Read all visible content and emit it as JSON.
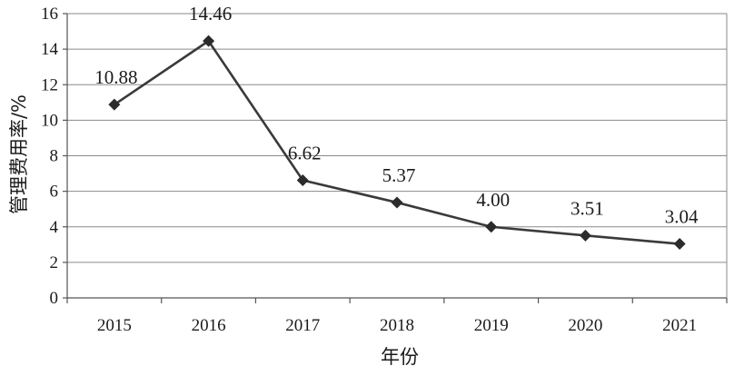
{
  "chart_data": {
    "type": "line",
    "title": "",
    "xlabel": "年份",
    "ylabel": "管理费用率/%",
    "categories": [
      "2015",
      "2016",
      "2017",
      "2018",
      "2019",
      "2020",
      "2021"
    ],
    "series": [
      {
        "values": [
          10.88,
          14.46,
          6.62,
          5.37,
          4.0,
          3.51,
          3.04
        ],
        "labels": [
          "10.88",
          "14.46",
          "6.62",
          "5.37",
          "4.00",
          "3.51",
          "3.04"
        ],
        "color": "#3a3a3a"
      }
    ],
    "ylim": [
      0,
      16
    ],
    "yticks": [
      0,
      2,
      4,
      6,
      8,
      10,
      12,
      14,
      16
    ],
    "ytick_labels": [
      "0",
      "2",
      "4",
      "6",
      "8",
      "10",
      "12",
      "14",
      "16"
    ],
    "grid": "horizontal",
    "legend": "none",
    "marker": "diamond"
  }
}
